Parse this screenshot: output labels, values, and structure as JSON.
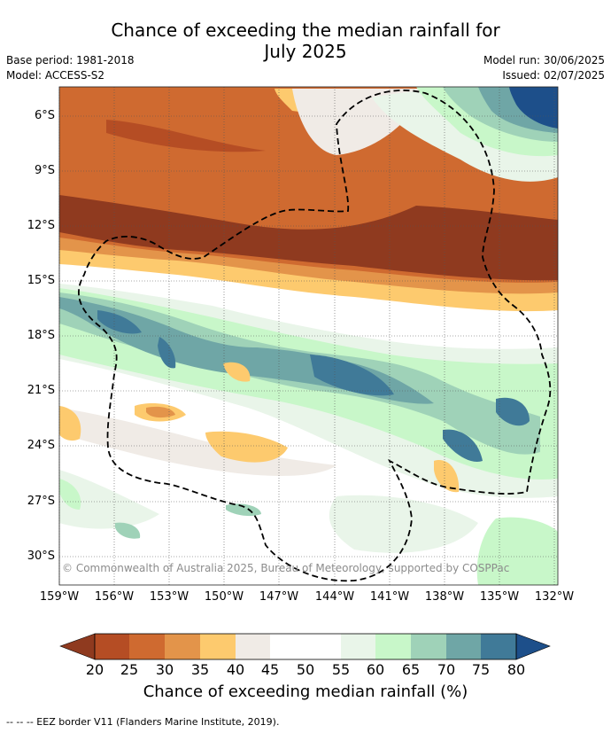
{
  "title_line1": "Chance of exceeding the median rainfall for",
  "title_line2": "July 2025",
  "base_period": "Base period: 1981-2018",
  "model": "Model: ACCESS-S2",
  "model_run": "Model run: 30/06/2025",
  "issued": "Issued: 02/07/2025",
  "copyright": "© Commonwealth of Australia 2025, Bureau of Meteorology, supported by COSPPac",
  "lat_labels": [
    "6°S",
    "9°S",
    "12°S",
    "15°S",
    "18°S",
    "21°S",
    "24°S",
    "27°S",
    "30°S"
  ],
  "lon_labels": [
    "159°W",
    "156°W",
    "153°W",
    "150°W",
    "147°W",
    "144°W",
    "141°W",
    "138°W",
    "135°W",
    "132°W"
  ],
  "colorbar": {
    "title": "Chance of exceeding median rainfall (%)",
    "ticks": [
      "20",
      "25",
      "30",
      "35",
      "40",
      "45",
      "50",
      "55",
      "60",
      "65",
      "70",
      "75",
      "80"
    ],
    "colors": [
      "#8f3a1f",
      "#b54d24",
      "#cf6a30",
      "#e3944a",
      "#fdca6e",
      "#f0ebe6",
      "#ffffff",
      "#ffffff",
      "#e9f5e9",
      "#c8f7c9",
      "#9fd2b8",
      "#6fa6a6",
      "#407a98",
      "#1d4f8a"
    ]
  },
  "footer": "--  --  -- EEZ border V11 (Flanders Marine Institute, 2019)."
}
